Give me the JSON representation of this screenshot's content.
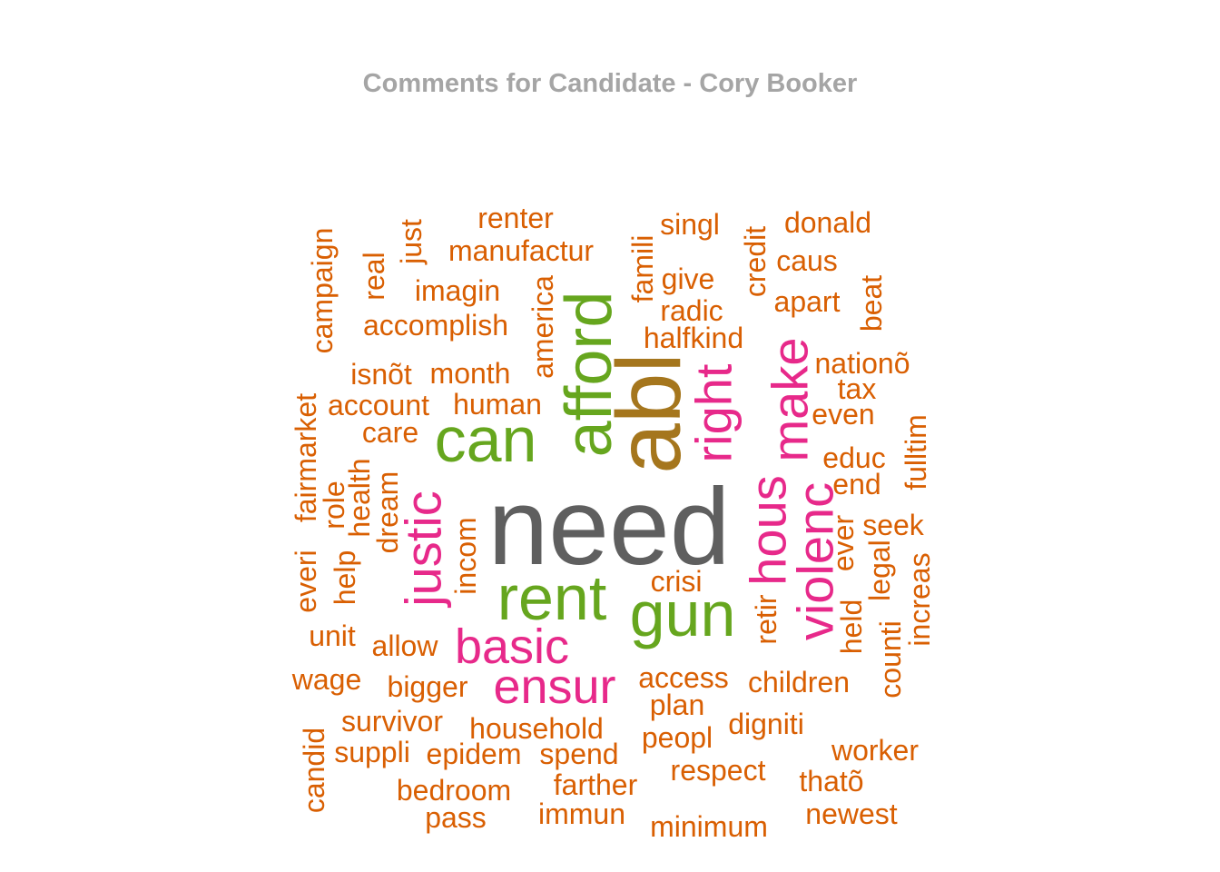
{
  "chart_data": {
    "type": "wordcloud",
    "title": "Comments for Candidate - Cory Booker",
    "palette": {
      "dark_gray": "#5f5f5f",
      "olive": "#a5761d",
      "green": "#66a61e",
      "pink": "#e7298a",
      "orange": "#d95f02"
    },
    "words": [
      {
        "word": "need",
        "color": "dark_gray",
        "rotated": false
      },
      {
        "word": "abl",
        "color": "olive",
        "rotated": true
      },
      {
        "word": "afford",
        "color": "green",
        "rotated": true
      },
      {
        "word": "can",
        "color": "green",
        "rotated": false
      },
      {
        "word": "rent",
        "color": "green",
        "rotated": false
      },
      {
        "word": "gun",
        "color": "green",
        "rotated": false
      },
      {
        "word": "right",
        "color": "pink",
        "rotated": true
      },
      {
        "word": "make",
        "color": "pink",
        "rotated": true
      },
      {
        "word": "hous",
        "color": "pink",
        "rotated": true
      },
      {
        "word": "violenc",
        "color": "pink",
        "rotated": true
      },
      {
        "word": "justic",
        "color": "pink",
        "rotated": true
      },
      {
        "word": "basic",
        "color": "pink",
        "rotated": false
      },
      {
        "word": "ensur",
        "color": "pink",
        "rotated": false
      },
      {
        "word": "renter",
        "color": "orange",
        "rotated": false
      },
      {
        "word": "manufactur",
        "color": "orange",
        "rotated": false
      },
      {
        "word": "imagin",
        "color": "orange",
        "rotated": false
      },
      {
        "word": "accomplish",
        "color": "orange",
        "rotated": false
      },
      {
        "word": "isnõt",
        "color": "orange",
        "rotated": false
      },
      {
        "word": "month",
        "color": "orange",
        "rotated": false
      },
      {
        "word": "account",
        "color": "orange",
        "rotated": false
      },
      {
        "word": "human",
        "color": "orange",
        "rotated": false
      },
      {
        "word": "care",
        "color": "orange",
        "rotated": false
      },
      {
        "word": "campaign",
        "color": "orange",
        "rotated": true
      },
      {
        "word": "real",
        "color": "orange",
        "rotated": true
      },
      {
        "word": "just",
        "color": "orange",
        "rotated": true
      },
      {
        "word": "america",
        "color": "orange",
        "rotated": true
      },
      {
        "word": "fairmarket",
        "color": "orange",
        "rotated": true
      },
      {
        "word": "everi",
        "color": "orange",
        "rotated": true
      },
      {
        "word": "role",
        "color": "orange",
        "rotated": true
      },
      {
        "word": "health",
        "color": "orange",
        "rotated": true
      },
      {
        "word": "dream",
        "color": "orange",
        "rotated": true
      },
      {
        "word": "help",
        "color": "orange",
        "rotated": true
      },
      {
        "word": "incom",
        "color": "orange",
        "rotated": true
      },
      {
        "word": "unit",
        "color": "orange",
        "rotated": false
      },
      {
        "word": "allow",
        "color": "orange",
        "rotated": false
      },
      {
        "word": "wage",
        "color": "orange",
        "rotated": false
      },
      {
        "word": "bigger",
        "color": "orange",
        "rotated": false
      },
      {
        "word": "survivor",
        "color": "orange",
        "rotated": false
      },
      {
        "word": "household",
        "color": "orange",
        "rotated": false
      },
      {
        "word": "suppli",
        "color": "orange",
        "rotated": false
      },
      {
        "word": "epidem",
        "color": "orange",
        "rotated": false
      },
      {
        "word": "spend",
        "color": "orange",
        "rotated": false
      },
      {
        "word": "candid",
        "color": "orange",
        "rotated": true
      },
      {
        "word": "bedroom",
        "color": "orange",
        "rotated": false
      },
      {
        "word": "farther",
        "color": "orange",
        "rotated": false
      },
      {
        "word": "pass",
        "color": "orange",
        "rotated": false
      },
      {
        "word": "immun",
        "color": "orange",
        "rotated": false
      },
      {
        "word": "minimum",
        "color": "orange",
        "rotated": false
      },
      {
        "word": "famili",
        "color": "orange",
        "rotated": true
      },
      {
        "word": "singl",
        "color": "orange",
        "rotated": false
      },
      {
        "word": "give",
        "color": "orange",
        "rotated": false
      },
      {
        "word": "radic",
        "color": "orange",
        "rotated": false
      },
      {
        "word": "halfkind",
        "color": "orange",
        "rotated": false
      },
      {
        "word": "credit",
        "color": "orange",
        "rotated": true
      },
      {
        "word": "donald",
        "color": "orange",
        "rotated": false
      },
      {
        "word": "caus",
        "color": "orange",
        "rotated": false
      },
      {
        "word": "apart",
        "color": "orange",
        "rotated": false
      },
      {
        "word": "beat",
        "color": "orange",
        "rotated": true
      },
      {
        "word": "nationõ",
        "color": "orange",
        "rotated": false
      },
      {
        "word": "tax",
        "color": "orange",
        "rotated": false
      },
      {
        "word": "even",
        "color": "orange",
        "rotated": false
      },
      {
        "word": "educ",
        "color": "orange",
        "rotated": false
      },
      {
        "word": "end",
        "color": "orange",
        "rotated": false
      },
      {
        "word": "fulltim",
        "color": "orange",
        "rotated": true
      },
      {
        "word": "seek",
        "color": "orange",
        "rotated": false
      },
      {
        "word": "ever",
        "color": "orange",
        "rotated": true
      },
      {
        "word": "legal",
        "color": "orange",
        "rotated": true
      },
      {
        "word": "increas",
        "color": "orange",
        "rotated": true
      },
      {
        "word": "held",
        "color": "orange",
        "rotated": true
      },
      {
        "word": "counti",
        "color": "orange",
        "rotated": true
      },
      {
        "word": "retir",
        "color": "orange",
        "rotated": true
      },
      {
        "word": "crisi",
        "color": "orange",
        "rotated": false
      },
      {
        "word": "access",
        "color": "orange",
        "rotated": false
      },
      {
        "word": "children",
        "color": "orange",
        "rotated": false
      },
      {
        "word": "plan",
        "color": "orange",
        "rotated": false
      },
      {
        "word": "digniti",
        "color": "orange",
        "rotated": false
      },
      {
        "word": "peopl",
        "color": "orange",
        "rotated": false
      },
      {
        "word": "worker",
        "color": "orange",
        "rotated": false
      },
      {
        "word": "respect",
        "color": "orange",
        "rotated": false
      },
      {
        "word": "thatõ",
        "color": "orange",
        "rotated": false
      },
      {
        "word": "newest",
        "color": "orange",
        "rotated": false
      }
    ]
  }
}
